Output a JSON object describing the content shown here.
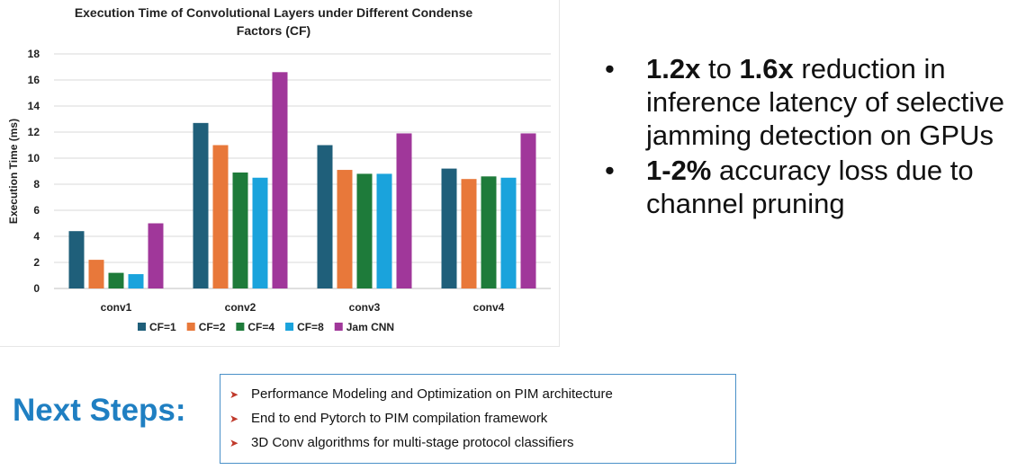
{
  "chart_data": {
    "type": "bar",
    "title": "Execution Time of Convolutional Layers under Different Condense Factors (CF)",
    "title_lines": [
      "Execution Time of Convolutional Layers under Different Condense",
      "Factors (CF)"
    ],
    "xlabel": "",
    "ylabel": "Execution Time (ms)",
    "ylim": [
      0,
      18
    ],
    "yticks": [
      0,
      2,
      4,
      6,
      8,
      10,
      12,
      14,
      16,
      18
    ],
    "grid": true,
    "legend_position": "bottom",
    "categories": [
      "conv1",
      "conv2",
      "conv3",
      "conv4"
    ],
    "series": [
      {
        "name": "CF=1",
        "color": "#1f5f7a",
        "values": [
          4.4,
          12.7,
          11.0,
          9.2
        ]
      },
      {
        "name": "CF=2",
        "color": "#e8783a",
        "values": [
          2.2,
          11.0,
          9.1,
          8.4
        ]
      },
      {
        "name": "CF=4",
        "color": "#1e7b3a",
        "values": [
          1.2,
          8.9,
          8.8,
          8.6
        ]
      },
      {
        "name": "CF=8",
        "color": "#1aa3dc",
        "values": [
          1.1,
          8.5,
          8.8,
          8.5
        ]
      },
      {
        "name": "Jam CNN",
        "color": "#a0379a",
        "values": [
          5.0,
          16.6,
          11.9,
          11.9
        ]
      }
    ]
  },
  "bullets": [
    {
      "bold": "1.2x",
      "mid": " to ",
      "bold2": "1.6x",
      "rest": " reduction in inference latency of selective jamming detection on GPUs"
    },
    {
      "bold": "1-2%",
      "mid": "",
      "bold2": "",
      "rest": " accuracy loss due to channel pruning"
    }
  ],
  "bullet_glyph": "•",
  "next_steps": {
    "title": "Next Steps:",
    "icon": "arrowhead-icon",
    "items": [
      "Performance Modeling and Optimization on PIM architecture",
      "End to end Pytorch to PIM compilation framework",
      "3D Conv algorithms for multi-stage protocol classifiers"
    ]
  }
}
